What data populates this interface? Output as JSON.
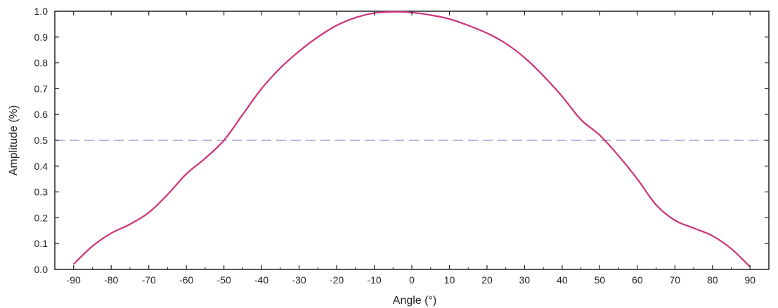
{
  "chart_data": {
    "type": "line",
    "title": "",
    "xlabel": "Angle (°)",
    "ylabel": "Amplitude (%)",
    "xlim": [
      -95,
      95
    ],
    "ylim": [
      0,
      1.0
    ],
    "xticks": [
      -90,
      -80,
      -70,
      -60,
      -50,
      -40,
      -30,
      -20,
      -10,
      0,
      10,
      20,
      30,
      40,
      50,
      60,
      70,
      80,
      90
    ],
    "yticks": [
      0.0,
      0.1,
      0.2,
      0.3,
      0.4,
      0.5,
      0.6,
      0.7,
      0.8,
      0.9,
      1.0
    ],
    "grid": false,
    "series": [
      {
        "color": "#cc3377",
        "x": [
          -90,
          -85,
          -80,
          -75,
          -70,
          -65,
          -60,
          -55,
          -50,
          -45,
          -40,
          -35,
          -30,
          -25,
          -20,
          -15,
          -10,
          -5,
          0,
          5,
          10,
          15,
          20,
          25,
          30,
          35,
          40,
          45,
          50,
          55,
          60,
          65,
          70,
          75,
          80,
          85,
          90
        ],
        "y": [
          0.02,
          0.09,
          0.14,
          0.175,
          0.22,
          0.29,
          0.37,
          0.43,
          0.5,
          0.6,
          0.7,
          0.78,
          0.845,
          0.9,
          0.945,
          0.975,
          0.993,
          0.998,
          0.995,
          0.985,
          0.97,
          0.945,
          0.915,
          0.875,
          0.82,
          0.75,
          0.67,
          0.58,
          0.52,
          0.44,
          0.35,
          0.25,
          0.19,
          0.16,
          0.13,
          0.08,
          0.01
        ]
      }
    ],
    "reference_lines": [
      {
        "orientation": "horizontal",
        "y": 0.5,
        "style": "dashed",
        "color": "#8a8fcf"
      }
    ]
  }
}
